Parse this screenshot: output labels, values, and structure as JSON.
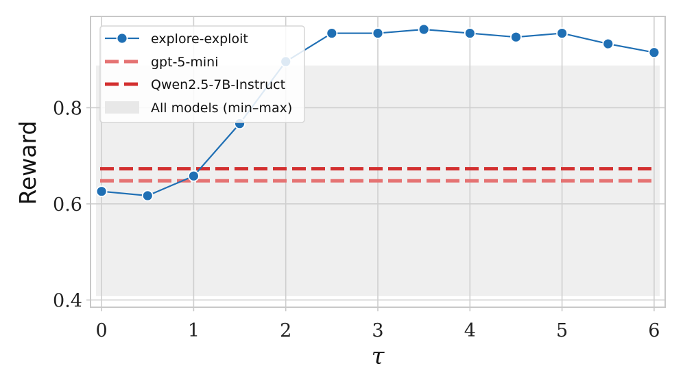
{
  "chart_data": {
    "type": "line",
    "xlabel": "τ",
    "ylabel": "Reward",
    "xlim": [
      -0.12,
      6.12
    ],
    "ylim": [
      0.385,
      0.99
    ],
    "x_ticks": [
      0,
      1,
      2,
      3,
      4,
      5,
      6
    ],
    "y_ticks": [
      0.4,
      0.6,
      0.8
    ],
    "y_tick_labels": [
      "0.4",
      "0.6",
      "0.8"
    ],
    "grid": true,
    "legend_position": "top-left",
    "series": [
      {
        "name": "explore-exploit",
        "type": "line-markers",
        "color": "#1f6fb4",
        "x": [
          0,
          0.5,
          1,
          1.5,
          2,
          2.5,
          3,
          3.5,
          4,
          4.5,
          5,
          5.5,
          6
        ],
        "y": [
          0.626,
          0.617,
          0.658,
          0.767,
          0.896,
          0.955,
          0.955,
          0.963,
          0.955,
          0.947,
          0.955,
          0.933,
          0.915
        ]
      },
      {
        "name": "gpt-5-mini",
        "type": "hline-dashed",
        "color": "#e57373",
        "y": 0.648
      },
      {
        "name": "Qwen2.5-7B-Instruct",
        "type": "hline-dashed",
        "color": "#d32f2f",
        "y": 0.673
      },
      {
        "name": "All models (min–max)",
        "type": "band",
        "color": "#e0e0e0",
        "y_min": 0.408,
        "y_max": 0.888
      }
    ]
  }
}
